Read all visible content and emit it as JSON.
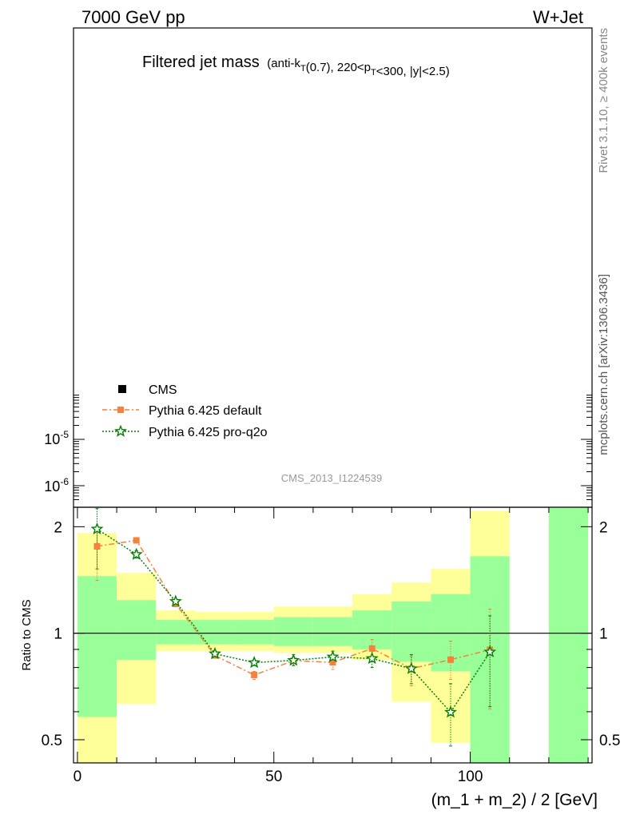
{
  "header": {
    "energy_label": "7000 GeV pp",
    "process_label": "W+Jet",
    "plot_id": "CMS_2013_I1224539"
  },
  "side_text": {
    "rivet": "Rivet 3.1.10, ≥ 400k events",
    "mcplots": "mcplots.cern.ch [arXiv:1306.3436]"
  },
  "chart_data": [
    {
      "panel": "main",
      "type": "line",
      "title": "Filtered jet mass",
      "title_suffix": "(anti-k_T(0.7), 220<p_T<300, |y|<2.5)",
      "yscale": "log",
      "visible_ytick_labels": [
        "10^-6",
        "10^-5"
      ],
      "series": [],
      "legend": {
        "placement": "lower-left",
        "entries": [
          {
            "label": "CMS",
            "color": "#000000",
            "marker": "square"
          },
          {
            "label": "Pythia 6.425 default",
            "color": "#f4823c",
            "marker": "square",
            "line": "dash-dot"
          },
          {
            "label": "Pythia 6.425 pro-q2o",
            "color": "#007f00",
            "marker": "star",
            "line": "dotted"
          }
        ]
      }
    },
    {
      "panel": "ratio",
      "type": "line",
      "xlabel": "(m_1 + m_2) / 2 [GeV]",
      "ylabel": "Ratio to CMS",
      "xlim": [
        -1,
        131
      ],
      "ylim": [
        0.43,
        2.27
      ],
      "yscale": "log",
      "xticks": [
        0,
        50,
        100
      ],
      "yticks": [
        0.5,
        1,
        2
      ],
      "reference_line": 1,
      "bands": {
        "colors": {
          "outer": "#ffff99",
          "inner": "#99ff99"
        },
        "bins": [
          {
            "x": [
              0,
              10
            ],
            "outer": [
              0.43,
              1.92
            ],
            "inner": [
              0.58,
              1.45
            ]
          },
          {
            "x": [
              10,
              20
            ],
            "outer": [
              0.63,
              1.48
            ],
            "inner": [
              0.84,
              1.24
            ]
          },
          {
            "x": [
              20,
              30
            ],
            "outer": [
              0.89,
              1.16
            ],
            "inner": [
              0.93,
              1.09
            ]
          },
          {
            "x": [
              30,
              40
            ],
            "outer": [
              0.89,
              1.15
            ],
            "inner": [
              0.93,
              1.09
            ]
          },
          {
            "x": [
              40,
              50
            ],
            "outer": [
              0.89,
              1.15
            ],
            "inner": [
              0.93,
              1.09
            ]
          },
          {
            "x": [
              50,
              60
            ],
            "outer": [
              0.88,
              1.19
            ],
            "inner": [
              0.92,
              1.11
            ]
          },
          {
            "x": [
              60,
              70
            ],
            "outer": [
              0.88,
              1.19
            ],
            "inner": [
              0.92,
              1.11
            ]
          },
          {
            "x": [
              70,
              80
            ],
            "outer": [
              0.84,
              1.29
            ],
            "inner": [
              0.9,
              1.16
            ]
          },
          {
            "x": [
              80,
              90
            ],
            "outer": [
              0.64,
              1.39
            ],
            "inner": [
              0.83,
              1.23
            ]
          },
          {
            "x": [
              90,
              100
            ],
            "outer": [
              0.49,
              1.52
            ],
            "inner": [
              0.78,
              1.29
            ]
          },
          {
            "x": [
              100,
              110
            ],
            "outer": [
              0.43,
              2.22
            ],
            "inner": [
              0.43,
              1.65
            ]
          },
          {
            "x": [
              120,
              130
            ],
            "outer": [
              0.43,
              2.27
            ],
            "inner": [
              0.43,
              2.27
            ]
          }
        ]
      },
      "series": [
        {
          "name": "Pythia 6.425 default",
          "color": "#f4823c",
          "marker": "square",
          "line": "dash-dot",
          "points": [
            {
              "x": 5,
              "y": 1.76,
              "err": [
                1.41,
                2.0
              ]
            },
            {
              "x": 15,
              "y": 1.83,
              "err": [
                1.8,
                1.86
              ]
            },
            {
              "x": 25,
              "y": 1.21,
              "err": [
                1.19,
                1.23
              ]
            },
            {
              "x": 35,
              "y": 0.865,
              "err": [
                0.85,
                0.88
              ]
            },
            {
              "x": 45,
              "y": 0.762,
              "err": [
                0.74,
                0.78
              ]
            },
            {
              "x": 55,
              "y": 0.836,
              "err": [
                0.81,
                0.86
              ]
            },
            {
              "x": 65,
              "y": 0.827,
              "err": [
                0.79,
                0.87
              ]
            },
            {
              "x": 75,
              "y": 0.905,
              "err": [
                0.86,
                0.96
              ]
            },
            {
              "x": 85,
              "y": 0.794,
              "err": [
                0.71,
                0.86
              ]
            },
            {
              "x": 95,
              "y": 0.842,
              "err": [
                0.74,
                0.95
              ]
            },
            {
              "x": 105,
              "y": 0.898,
              "err": [
                0.61,
                1.17
              ]
            }
          ]
        },
        {
          "name": "Pythia 6.425 pro-q2o",
          "color": "#007f00",
          "marker": "star",
          "line": "dotted",
          "points": [
            {
              "x": 5,
              "y": 1.97,
              "err": [
                1.52,
                2.25
              ]
            },
            {
              "x": 15,
              "y": 1.67,
              "err": [
                1.63,
                1.71
              ]
            },
            {
              "x": 25,
              "y": 1.23,
              "err": [
                1.21,
                1.25
              ]
            },
            {
              "x": 35,
              "y": 0.875,
              "err": [
                0.86,
                0.89
              ]
            },
            {
              "x": 45,
              "y": 0.826,
              "err": [
                0.81,
                0.84
              ]
            },
            {
              "x": 55,
              "y": 0.838,
              "err": [
                0.81,
                0.87
              ]
            },
            {
              "x": 65,
              "y": 0.857,
              "err": [
                0.83,
                0.89
              ]
            },
            {
              "x": 75,
              "y": 0.848,
              "err": [
                0.8,
                0.9
              ]
            },
            {
              "x": 85,
              "y": 0.794,
              "err": [
                0.72,
                0.87
              ]
            },
            {
              "x": 95,
              "y": 0.598,
              "err": [
                0.48,
                0.72
              ]
            },
            {
              "x": 105,
              "y": 0.885,
              "err": [
                0.62,
                1.12
              ]
            }
          ]
        }
      ]
    }
  ]
}
